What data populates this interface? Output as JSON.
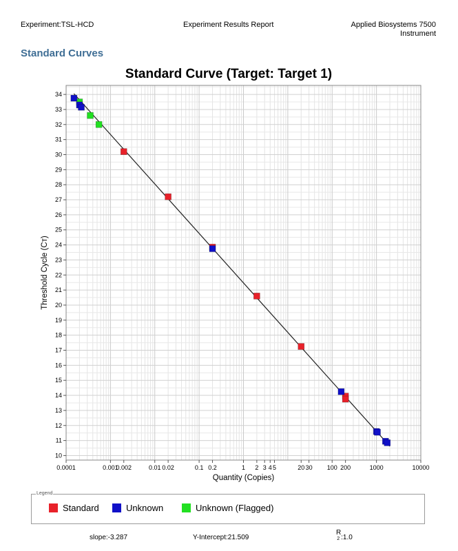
{
  "header": {
    "experiment": "Experiment:TSL-HCD",
    "report_title": "Experiment Results Report",
    "instrument_line1": "Applied Biosystems 7500",
    "instrument_line2": "Instrument"
  },
  "section_title": "Standard Curves",
  "colors": {
    "standard": "#e8212a",
    "unknown": "#1010c8",
    "flagged": "#22e022",
    "section": "#3f6e95"
  },
  "chart_data": {
    "type": "scatter",
    "title": "Standard Curve (Target: Target 1)",
    "xlabel": "Quantity (Copies)",
    "ylabel": "Threshold Cycle (Cт)",
    "x_scale": "log",
    "xlim": [
      0.0001,
      10000
    ],
    "ylim": [
      9.7,
      34.6
    ],
    "x_tick_labels": [
      {
        "value": 0.0001,
        "label": "0.0001"
      },
      {
        "value": 0.001,
        "label": "0.001"
      },
      {
        "value": 0.002,
        "label": "0.002"
      },
      {
        "value": 0.01,
        "label": "0.01"
      },
      {
        "value": 0.02,
        "label": "0.02"
      },
      {
        "value": 0.1,
        "label": "0.1"
      },
      {
        "value": 0.2,
        "label": "0.2"
      },
      {
        "value": 1,
        "label": "1"
      },
      {
        "value": 2,
        "label": "2"
      },
      {
        "value": 3,
        "label": "3"
      },
      {
        "value": 4,
        "label": "4"
      },
      {
        "value": 5,
        "label": "5"
      },
      {
        "value": 20,
        "label": "20"
      },
      {
        "value": 30,
        "label": "30"
      },
      {
        "value": 100,
        "label": "100"
      },
      {
        "value": 200,
        "label": "200"
      },
      {
        "value": 1000,
        "label": "1000"
      },
      {
        "value": 10000,
        "label": "10000"
      }
    ],
    "y_ticks": [
      10,
      11,
      12,
      13,
      14,
      15,
      16,
      17,
      18,
      19,
      20,
      21,
      22,
      23,
      24,
      25,
      26,
      27,
      28,
      29,
      30,
      31,
      32,
      33,
      34
    ],
    "grid": true,
    "fit_line": {
      "x": [
        0.00015,
        2000
      ],
      "y": [
        34.05,
        10.62
      ]
    },
    "series": [
      {
        "name": "Standard",
        "color": "#e8212a",
        "points": [
          {
            "x": 0.002,
            "y": 30.2
          },
          {
            "x": 0.02,
            "y": 27.2
          },
          {
            "x": 0.2,
            "y": 23.85
          },
          {
            "x": 2,
            "y": 20.6
          },
          {
            "x": 20,
            "y": 17.25
          },
          {
            "x": 200,
            "y": 13.95
          },
          {
            "x": 200,
            "y": 13.75
          }
        ]
      },
      {
        "name": "Unknown",
        "color": "#1010c8",
        "points": [
          {
            "x": 0.00015,
            "y": 33.75
          },
          {
            "x": 0.0002,
            "y": 33.3
          },
          {
            "x": 0.00022,
            "y": 33.15
          },
          {
            "x": 0.2,
            "y": 23.75
          },
          {
            "x": 160,
            "y": 14.25
          },
          {
            "x": 1000,
            "y": 11.6
          },
          {
            "x": 1050,
            "y": 11.55
          },
          {
            "x": 1600,
            "y": 10.95
          },
          {
            "x": 1750,
            "y": 10.85
          }
        ]
      },
      {
        "name": "Unknown (Flagged)",
        "color": "#22e022",
        "points": [
          {
            "x": 0.0002,
            "y": 33.5
          },
          {
            "x": 0.00035,
            "y": 32.6
          },
          {
            "x": 0.00055,
            "y": 32.0
          }
        ]
      }
    ]
  },
  "legend": {
    "caption": "Legend",
    "items": [
      {
        "label": "Standard",
        "color": "#e8212a"
      },
      {
        "label": "Unknown",
        "color": "#1010c8"
      },
      {
        "label": "Unknown (Flagged)",
        "color": "#22e022"
      }
    ]
  },
  "footer": {
    "slope": "slope:-3.287",
    "y_intercept": "Y-Intercept:21.509",
    "r2_label": "R",
    "r2_sup": "2",
    "r2_value": ":1.0"
  }
}
